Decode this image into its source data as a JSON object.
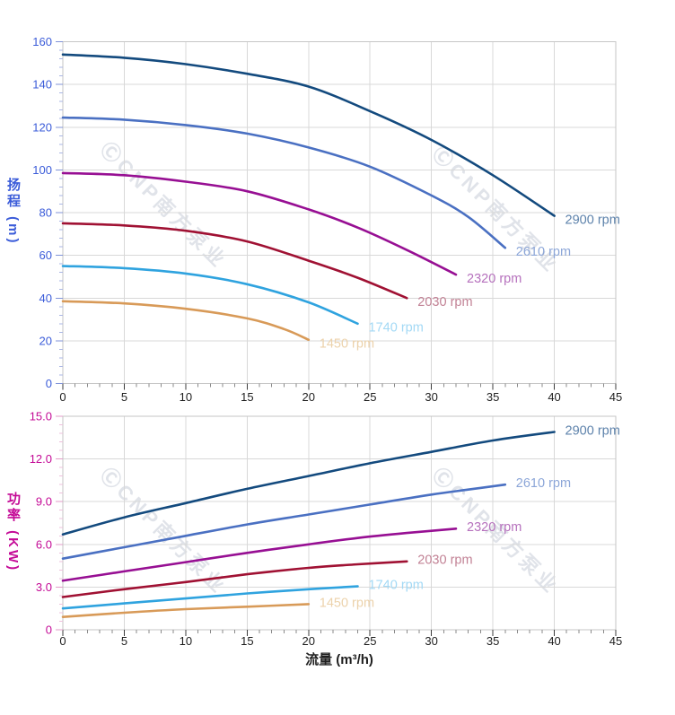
{
  "watermark": {
    "text": "ⒸCNP南方泵业"
  },
  "chart_data": [
    {
      "type": "line",
      "title": "",
      "xlabel": "",
      "ylabel": "扬程 (m)",
      "xlim": [
        0,
        45
      ],
      "ylim": [
        0,
        160
      ],
      "grid": true,
      "legend_position": "end-of-line",
      "x_tick_values": [
        0,
        5,
        10,
        15,
        20,
        25,
        30,
        35,
        40,
        45
      ],
      "x_tick_labels": [
        "0",
        "5",
        "10",
        "15",
        "20",
        "25",
        "30",
        "35",
        "40",
        "45"
      ],
      "x_minor_step": 1,
      "y_tick_values": [
        0,
        20,
        40,
        60,
        80,
        100,
        120,
        140,
        160
      ],
      "y_tick_labels": [
        "0",
        "20",
        "40",
        "60",
        "80",
        "100",
        "120",
        "140",
        "160"
      ],
      "y_minor_step": 4,
      "y_axis_color": "#3b5cd9",
      "y_tick_color": "#8093d8",
      "y_minor_tick_color": "#aab6e4",
      "x_tick_label_color": "#1f1f1f",
      "x_tick_color": "#3c3c3c",
      "x_minor_tick_color": "#8a8a8a",
      "grid_color": "#d8d8d8",
      "border_color": "#c6c6c6",
      "series": [
        {
          "name": "2900 rpm",
          "color": "#134a7e",
          "label_color": "#5d82ab",
          "points": [
            [
              0,
              154
            ],
            [
              5,
              152.5
            ],
            [
              10,
              149.5
            ],
            [
              15,
              145
            ],
            [
              20,
              139
            ],
            [
              25,
              127.5
            ],
            [
              30,
              114
            ],
            [
              35,
              97.5
            ],
            [
              40,
              78.5
            ]
          ]
        },
        {
          "name": "2610 rpm",
          "color": "#4a70c2",
          "label_color": "#8ca6d8",
          "points": [
            [
              0,
              124.5
            ],
            [
              5,
              123.5
            ],
            [
              10,
              121
            ],
            [
              15,
              117
            ],
            [
              20,
              110.5
            ],
            [
              25,
              101.5
            ],
            [
              30,
              88
            ],
            [
              33,
              78
            ],
            [
              36,
              63.5
            ]
          ]
        },
        {
          "name": "2320 rpm",
          "color": "#970f93",
          "label_color": "#b671bd",
          "points": [
            [
              0,
              98.5
            ],
            [
              5,
              97.5
            ],
            [
              10,
              94.5
            ],
            [
              15,
              90
            ],
            [
              20,
              81.5
            ],
            [
              24,
              73
            ],
            [
              28,
              62.5
            ],
            [
              32,
              51
            ]
          ]
        },
        {
          "name": "2030 rpm",
          "color": "#a01133",
          "label_color": "#c28295",
          "points": [
            [
              0,
              75
            ],
            [
              5,
              74
            ],
            [
              10,
              71.5
            ],
            [
              15,
              66.5
            ],
            [
              20,
              57.5
            ],
            [
              24,
              49.5
            ],
            [
              28,
              40
            ]
          ]
        },
        {
          "name": "1740 rpm",
          "color": "#2fa3df",
          "label_color": "#a3d9f5",
          "points": [
            [
              0,
              55
            ],
            [
              5,
              54
            ],
            [
              10,
              51.5
            ],
            [
              15,
              46.5
            ],
            [
              20,
              38
            ],
            [
              24,
              28
            ]
          ]
        },
        {
          "name": "1450 rpm",
          "color": "#d89a58",
          "label_color": "#ecd2ab",
          "points": [
            [
              0,
              38.5
            ],
            [
              5,
              37.5
            ],
            [
              10,
              35
            ],
            [
              15,
              30.5
            ],
            [
              18,
              25.5
            ],
            [
              20,
              20.5
            ]
          ]
        }
      ]
    },
    {
      "type": "line",
      "title": "",
      "xlabel": "流量 (m³/h)",
      "ylabel": "功率 (KW)",
      "xlim": [
        0,
        45
      ],
      "ylim": [
        0,
        15
      ],
      "grid": true,
      "legend_position": "end-of-line",
      "x_tick_values": [
        0,
        5,
        10,
        15,
        20,
        25,
        30,
        35,
        40,
        45
      ],
      "x_tick_labels": [
        "0",
        "5",
        "10",
        "15",
        "20",
        "25",
        "30",
        "35",
        "40",
        "45"
      ],
      "x_minor_step": 1,
      "y_tick_values": [
        0,
        3,
        6,
        9,
        12,
        15
      ],
      "y_tick_labels": [
        "0",
        "3.0",
        "6.0",
        "9.0",
        "12.0",
        "15.0"
      ],
      "y_minor_step": 0.6,
      "y_axis_color": "#c40a96",
      "y_tick_color": "#e39bc8",
      "y_minor_tick_color": "#eec0dc",
      "x_tick_label_color": "#1f1f1f",
      "x_tick_color": "#3c3c3c",
      "x_minor_tick_color": "#8a8a8a",
      "grid_color": "#d8d8d8",
      "border_color": "#c6c6c6",
      "series": [
        {
          "name": "2900 rpm",
          "color": "#134a7e",
          "label_color": "#5d82ab",
          "points": [
            [
              0,
              6.7
            ],
            [
              5,
              7.9
            ],
            [
              10,
              8.9
            ],
            [
              15,
              9.9
            ],
            [
              20,
              10.8
            ],
            [
              25,
              11.7
            ],
            [
              30,
              12.5
            ],
            [
              35,
              13.3
            ],
            [
              40,
              13.9
            ]
          ]
        },
        {
          "name": "2610 rpm",
          "color": "#4a70c2",
          "label_color": "#8ca6d8",
          "points": [
            [
              0,
              5.0
            ],
            [
              5,
              5.8
            ],
            [
              10,
              6.6
            ],
            [
              15,
              7.4
            ],
            [
              20,
              8.1
            ],
            [
              25,
              8.8
            ],
            [
              30,
              9.5
            ],
            [
              33,
              9.85
            ],
            [
              36,
              10.2
            ]
          ]
        },
        {
          "name": "2320 rpm",
          "color": "#970f93",
          "label_color": "#b671bd",
          "points": [
            [
              0,
              3.45
            ],
            [
              5,
              4.1
            ],
            [
              10,
              4.75
            ],
            [
              15,
              5.4
            ],
            [
              20,
              6.0
            ],
            [
              24,
              6.45
            ],
            [
              28,
              6.8
            ],
            [
              32,
              7.1
            ]
          ]
        },
        {
          "name": "2030 rpm",
          "color": "#a01133",
          "label_color": "#c28295",
          "points": [
            [
              0,
              2.3
            ],
            [
              5,
              2.85
            ],
            [
              10,
              3.35
            ],
            [
              15,
              3.9
            ],
            [
              20,
              4.35
            ],
            [
              24,
              4.6
            ],
            [
              28,
              4.8
            ]
          ]
        },
        {
          "name": "1740 rpm",
          "color": "#2fa3df",
          "label_color": "#a3d9f5",
          "points": [
            [
              0,
              1.5
            ],
            [
              5,
              1.85
            ],
            [
              10,
              2.2
            ],
            [
              15,
              2.55
            ],
            [
              20,
              2.85
            ],
            [
              24,
              3.05
            ]
          ]
        },
        {
          "name": "1450 rpm",
          "color": "#d89a58",
          "label_color": "#ecd2ab",
          "points": [
            [
              0,
              0.9
            ],
            [
              5,
              1.2
            ],
            [
              10,
              1.45
            ],
            [
              15,
              1.62
            ],
            [
              20,
              1.8
            ]
          ]
        }
      ]
    }
  ]
}
